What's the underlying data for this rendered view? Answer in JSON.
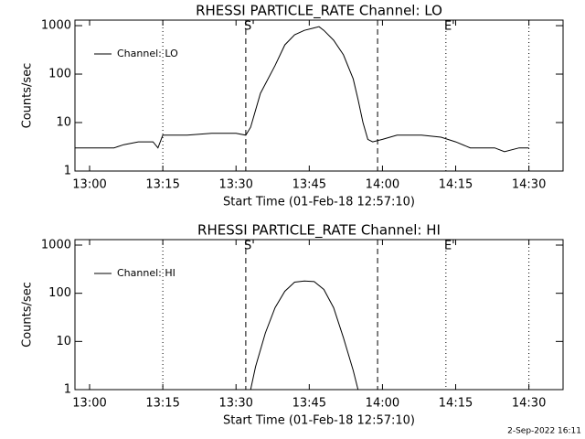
{
  "chart_data": [
    {
      "type": "line",
      "title": "RHESSI PARTICLE_RATE Channel: LO",
      "xlabel": "Start Time (01-Feb-18 12:57:10)",
      "ylabel": "Counts/sec",
      "log_y": true,
      "legend": "upper left",
      "xlim": [
        "12:57",
        "14:37"
      ],
      "xticks": [
        "13:00",
        "13:15",
        "13:30",
        "13:45",
        "14:00",
        "14:15",
        "14:30"
      ],
      "ylim": [
        1,
        1300
      ],
      "yticks": [
        1,
        10,
        100,
        1000
      ],
      "vlines": [
        {
          "x": "13:15",
          "style": "dotted"
        },
        {
          "x": "13:32",
          "style": "dashed",
          "label": "S'"
        },
        {
          "x": "13:59",
          "style": "dashed"
        },
        {
          "x": "14:13",
          "style": "dotted",
          "label": "E'"
        },
        {
          "x": "14:30",
          "style": "dotted"
        }
      ],
      "x": [
        "12:57",
        "13:00",
        "13:05",
        "13:07",
        "13:10",
        "13:13",
        "13:14",
        "13:15",
        "13:20",
        "13:25",
        "13:30",
        "13:32",
        "13:33",
        "13:35",
        "13:38",
        "13:40",
        "13:42",
        "13:44",
        "13:46",
        "13:47",
        "13:48",
        "13:50",
        "13:52",
        "13:54",
        "13:55",
        "13:56",
        "13:57",
        "13:58",
        "14:00",
        "14:03",
        "14:08",
        "14:12",
        "14:15",
        "14:18",
        "14:23",
        "14:25",
        "14:28",
        "14:30"
      ],
      "series": [
        {
          "name": "Channel: LO",
          "color": "#000000",
          "values": [
            3,
            3,
            3,
            3.5,
            4,
            4,
            3,
            5.5,
            5.5,
            6,
            6,
            5.5,
            8,
            40,
            150,
            400,
            650,
            800,
            900,
            950,
            800,
            500,
            250,
            80,
            30,
            10,
            4.5,
            4,
            4.5,
            5.5,
            5.5,
            5,
            4,
            3,
            3,
            2.5,
            3,
            3
          ]
        }
      ]
    },
    {
      "type": "line",
      "title": "RHESSI PARTICLE_RATE Channel: HI",
      "xlabel": "Start Time (01-Feb-18 12:57:10)",
      "ylabel": "Counts/sec",
      "log_y": true,
      "legend": "upper left",
      "xlim": [
        "12:57",
        "14:37"
      ],
      "xticks": [
        "13:00",
        "13:15",
        "13:30",
        "13:45",
        "14:00",
        "14:15",
        "14:30"
      ],
      "ylim": [
        1,
        1300
      ],
      "yticks": [
        1,
        10,
        100,
        1000
      ],
      "vlines": [
        {
          "x": "13:15",
          "style": "dotted"
        },
        {
          "x": "13:32",
          "style": "dashed",
          "label": "S'"
        },
        {
          "x": "13:59",
          "style": "dashed"
        },
        {
          "x": "14:13",
          "style": "dotted",
          "label": "E'"
        },
        {
          "x": "14:30",
          "style": "dotted"
        }
      ],
      "x": [
        "13:33",
        "13:34",
        "13:36",
        "13:38",
        "13:40",
        "13:42",
        "13:44",
        "13:46",
        "13:48",
        "13:50",
        "13:52",
        "13:54",
        "13:55"
      ],
      "series": [
        {
          "name": "Channel: HI",
          "color": "#000000",
          "values": [
            1,
            3,
            15,
            50,
            110,
            170,
            180,
            175,
            120,
            50,
            12,
            2.5,
            1
          ]
        }
      ]
    }
  ],
  "footer": "2-Sep-2022 16:11"
}
